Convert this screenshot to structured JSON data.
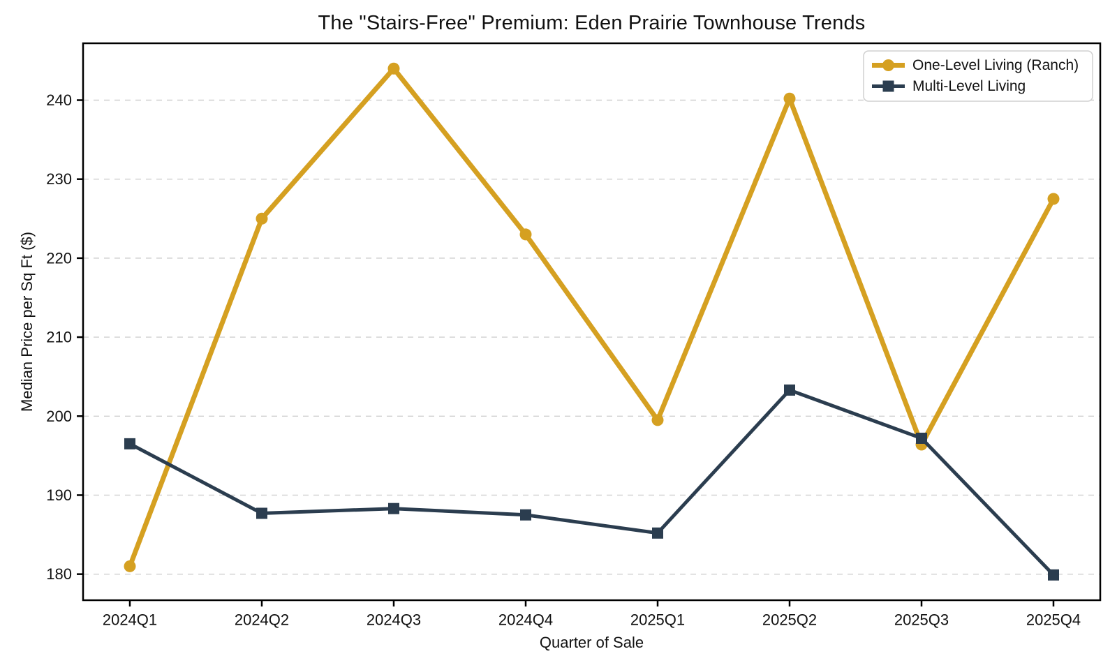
{
  "chart_data": {
    "type": "line",
    "title": "The \"Stairs-Free\" Premium: Eden Prairie Townhouse Trends",
    "xlabel": "Quarter of Sale",
    "ylabel": "Median Price per Sq Ft ($)",
    "categories": [
      "2024Q1",
      "2024Q2",
      "2024Q3",
      "2024Q4",
      "2025Q1",
      "2025Q2",
      "2025Q3",
      "2025Q4"
    ],
    "y_ticks": [
      180,
      190,
      200,
      210,
      220,
      230,
      240
    ],
    "ylim": [
      176.7,
      247.2
    ],
    "grid": "horizontal",
    "grid_style": "dashed",
    "legend_position": "upper right",
    "series": [
      {
        "name": "One-Level Living (Ranch)",
        "color": "#D5A021",
        "marker": "circle",
        "line_width": 7,
        "marker_size": 17,
        "values": [
          181.0,
          225.0,
          244.0,
          223.0,
          199.5,
          240.2,
          196.4,
          227.5
        ]
      },
      {
        "name": "Multi-Level Living",
        "color": "#2B3D4F",
        "marker": "square",
        "line_width": 5,
        "marker_size": 16,
        "values": [
          196.5,
          187.7,
          188.3,
          187.5,
          185.2,
          203.3,
          197.2,
          179.9
        ]
      }
    ]
  },
  "colors": {
    "background": "#ffffff",
    "grid": "#cfcfcf",
    "axis": "#000000",
    "text": "#111111",
    "legend_border": "#d0d0d0"
  }
}
